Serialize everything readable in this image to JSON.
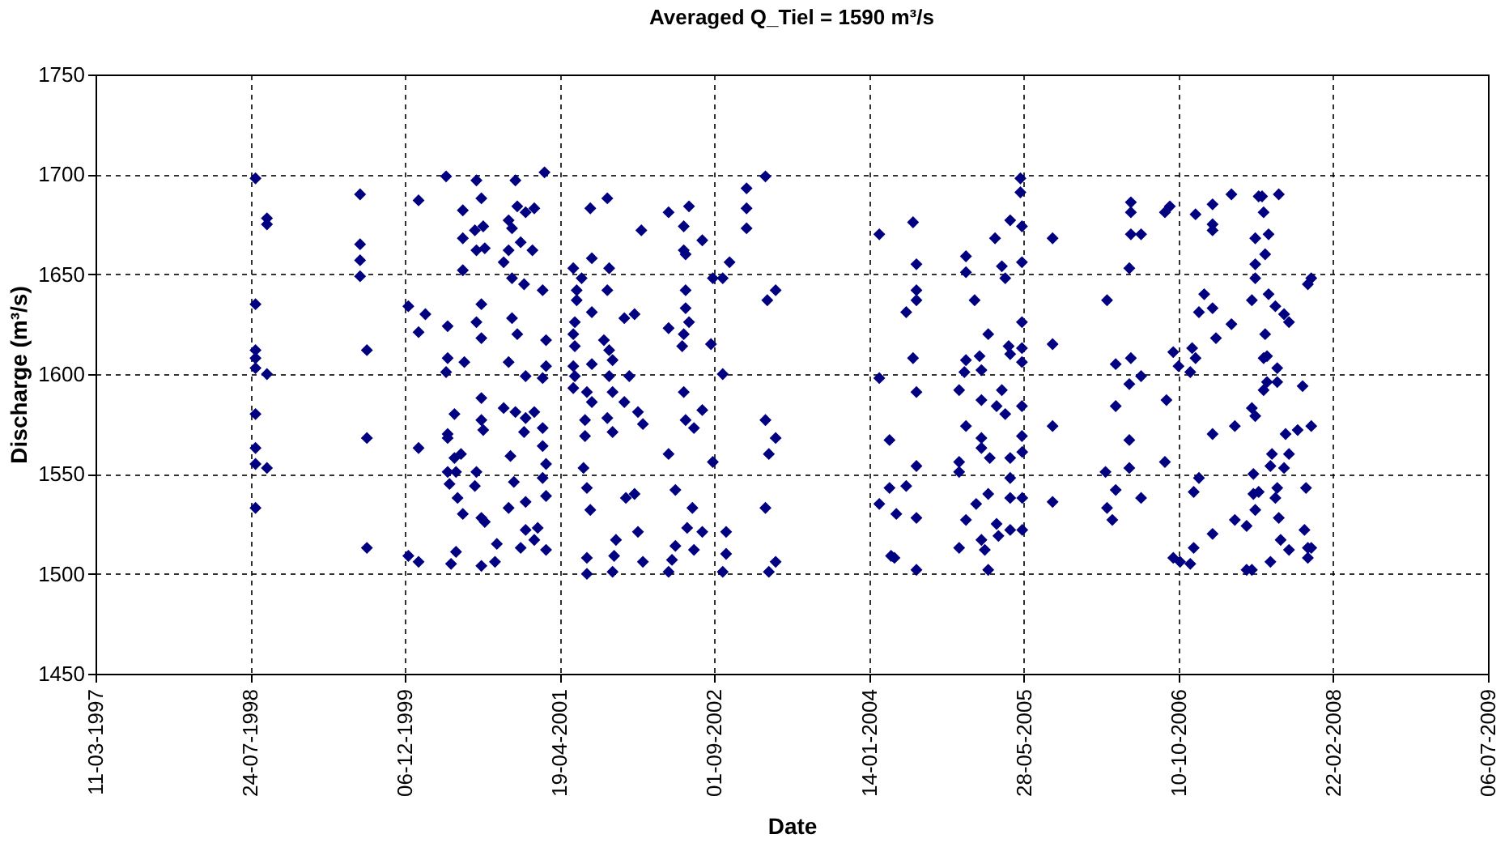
{
  "chart_data": {
    "type": "scatter",
    "title": "Averaged Q_Tiel = 1590 m³/s",
    "xlabel": "Date",
    "ylabel": "Discharge (m³/s)",
    "xlim": [
      "1997-03-11",
      "2009-07-06"
    ],
    "xticks": [
      {
        "value": "1997-03-11",
        "label": "11-03-1997"
      },
      {
        "value": "1998-07-24",
        "label": "24-07-1998"
      },
      {
        "value": "1999-12-06",
        "label": "06-12-1999"
      },
      {
        "value": "2001-04-19",
        "label": "19-04-2001"
      },
      {
        "value": "2002-09-01",
        "label": "01-09-2002"
      },
      {
        "value": "2004-01-14",
        "label": "14-01-2004"
      },
      {
        "value": "2005-05-28",
        "label": "28-05-2005"
      },
      {
        "value": "2006-10-10",
        "label": "10-10-2006"
      },
      {
        "value": "2008-02-22",
        "label": "22-02-2008"
      },
      {
        "value": "2009-07-06",
        "label": "06-07-2009"
      }
    ],
    "ylim": [
      1450,
      1750
    ],
    "yticks": [
      1450,
      1500,
      1550,
      1600,
      1650,
      1700,
      1750
    ],
    "grid": true,
    "marker": "diamond",
    "legend": false,
    "series": [
      {
        "color": "#000080",
        "x": [
          "1998-08-10",
          "1998-08-10",
          "1998-08-10",
          "1998-08-10",
          "1998-08-10",
          "1998-08-10",
          "1998-08-10",
          "1998-08-10",
          "1998-08-10",
          "1998-09-16",
          "1998-09-16",
          "1998-09-16",
          "1998-09-16",
          "1999-07-14",
          "1999-07-14",
          "1999-07-14",
          "1999-07-14",
          "1999-08-05",
          "1999-08-05",
          "1999-08-05",
          "1999-12-17",
          "1999-12-17",
          "2000-01-19",
          "2000-01-19",
          "2000-01-19",
          "2000-01-19",
          "2000-02-10",
          "2000-04-17",
          "2000-06-10",
          "2000-08-09",
          "2000-07-24",
          "2000-06-10",
          "2000-07-19",
          "2000-08-15",
          "2000-07-24",
          "2000-08-20",
          "2000-06-10",
          "2000-08-09",
          "2000-07-24",
          "2000-08-09",
          "2000-04-22",
          "2000-04-22",
          "2000-06-15",
          "2000-04-17",
          "2000-08-09",
          "2000-05-14",
          "2000-04-22",
          "2000-08-09",
          "2000-08-15",
          "2000-04-22",
          "2000-05-14",
          "2000-06-04",
          "2000-04-22",
          "2000-05-19",
          "2000-04-28",
          "2000-07-24",
          "2000-07-19",
          "2000-05-24",
          "2000-06-10",
          "2000-08-09",
          "2000-08-20",
          "2000-05-19",
          "2000-05-03",
          "2000-08-09",
          "2000-09-28",
          "2000-09-22",
          "2000-11-27",
          "2000-12-03",
          "2000-12-30",
          "2001-01-27",
          "2000-11-05",
          "2000-11-16",
          "2000-12-14",
          "2000-11-05",
          "2001-01-21",
          "2000-10-20",
          "2000-11-16",
          "2000-12-25",
          "2001-02-23",
          "2000-11-16",
          "2000-12-03",
          "2001-03-06",
          "2000-11-05",
          "2000-12-30",
          "2001-03-06",
          "2001-02-23",
          "2000-10-20",
          "2000-11-27",
          "2000-12-30",
          "2001-01-27",
          "2000-12-25",
          "2001-02-23",
          "2000-11-11",
          "2001-02-23",
          "2001-03-06",
          "2001-02-23",
          "2000-11-22",
          "2000-12-30",
          "2000-11-05",
          "2001-03-06",
          "2000-12-30",
          "2001-02-07",
          "2000-12-14",
          "2001-01-27",
          "2001-03-06",
          "2001-03-01",
          "2001-07-27",
          "2001-09-20",
          "2002-01-08",
          "2002-04-06",
          "2002-06-11",
          "2002-05-25",
          "2002-07-24",
          "2002-05-25",
          "2002-05-31",
          "2001-08-01",
          "2001-06-02",
          "2001-06-29",
          "2001-09-26",
          "2001-09-20",
          "2001-06-13",
          "2001-06-13",
          "2001-08-01",
          "2001-11-14",
          "2001-12-17",
          "2002-05-31",
          "2002-05-31",
          "2002-04-06",
          "2002-06-11",
          "2002-05-25",
          "2002-05-20",
          "2002-08-21",
          "2001-06-07",
          "2001-06-02",
          "2001-06-07",
          "2001-09-09",
          "2001-09-26",
          "2001-10-07",
          "2001-08-01",
          "2001-06-02",
          "2001-06-07",
          "2001-09-26",
          "2001-11-30",
          "2001-06-02",
          "2001-07-16",
          "2001-08-01",
          "2001-10-07",
          "2001-11-14",
          "2002-05-25",
          "2001-12-28",
          "2002-01-13",
          "2001-07-10",
          "2001-09-20",
          "2001-10-07",
          "2001-07-10",
          "2002-05-31",
          "2002-06-27",
          "2002-07-24",
          "2002-04-06",
          "2002-08-27",
          "2001-07-05",
          "2001-07-16",
          "2001-07-27",
          "2001-11-19",
          "2001-12-17",
          "2002-04-28",
          "2002-06-22",
          "2002-06-05",
          "2002-07-24",
          "2001-12-28",
          "2001-10-18",
          "2001-10-12",
          "2001-10-07",
          "2001-07-16",
          "2001-07-16",
          "2002-01-13",
          "2002-04-28",
          "2002-04-17",
          "2002-04-06",
          "2002-06-27",
          "2002-09-28",
          "2002-10-20",
          "2002-08-27",
          "2002-09-28",
          "2002-12-14",
          "2002-12-14",
          "2002-12-14",
          "2003-02-13",
          "2003-03-18",
          "2003-02-19",
          "2003-02-13",
          "2003-03-18",
          "2003-02-24",
          "2003-02-13",
          "2002-10-09",
          "2002-10-09",
          "2002-09-28",
          "2003-03-18",
          "2003-02-24",
          "2004-02-16",
          "2004-06-04",
          "2004-06-15",
          "2004-06-15",
          "2004-06-15",
          "2004-05-13",
          "2004-06-04",
          "2004-06-15",
          "2004-02-16",
          "2004-03-20",
          "2004-06-15",
          "2004-03-20",
          "2004-02-16",
          "2004-05-13",
          "2004-04-11",
          "2004-06-15",
          "2004-03-25",
          "2004-04-05",
          "2004-06-15",
          "2004-11-22",
          "2004-11-22",
          "2004-12-20",
          "2005-02-02",
          "2004-11-22",
          "2005-01-05",
          "2005-01-11",
          "2004-11-17",
          "2004-10-31",
          "2005-01-11",
          "2004-11-22",
          "2005-01-11",
          "2005-01-11",
          "2005-02-07",
          "2004-10-31",
          "2004-10-31",
          "2005-02-02",
          "2004-12-25",
          "2004-11-22",
          "2004-10-31",
          "2005-01-11",
          "2005-01-22",
          "2005-02-02",
          "2005-03-01",
          "2005-03-07",
          "2005-04-14",
          "2005-05-23",
          "2005-04-14",
          "2005-05-23",
          "2005-04-14",
          "2005-04-14",
          "2005-05-22",
          "2005-05-23",
          "2005-03-18",
          "2005-03-01",
          "2005-03-29",
          "2005-05-22",
          "2005-04-09",
          "2005-05-22",
          "2005-05-22",
          "2005-04-14",
          "2005-05-22",
          "2005-03-18",
          "2005-03-29",
          "2005-05-22",
          "2005-02-24",
          "2005-04-14",
          "2005-05-22",
          "2005-05-17",
          "2005-05-17",
          "2005-08-29",
          "2005-08-29",
          "2005-08-29",
          "2005-08-29",
          "2006-05-09",
          "2006-05-09",
          "2006-05-09",
          "2006-06-11",
          "2006-05-04",
          "2006-02-21",
          "2006-03-21",
          "2006-05-09",
          "2006-06-11",
          "2006-05-04",
          "2006-03-21",
          "2006-05-04",
          "2006-02-16",
          "2006-05-04",
          "2006-03-21",
          "2006-06-11",
          "2006-02-21",
          "2006-03-10",
          "2006-08-27",
          "2006-09-12",
          "2006-12-04",
          "2007-01-28",
          "2007-01-28",
          "2007-01-28",
          "2007-03-30",
          "2007-01-01",
          "2006-12-15",
          "2007-01-28",
          "2007-03-30",
          "2007-02-08",
          "2006-09-23",
          "2006-11-23",
          "2006-12-04",
          "2006-10-10",
          "2006-11-17",
          "2006-09-01",
          "2006-08-27",
          "2007-01-28",
          "2006-12-15",
          "2006-11-28",
          "2006-09-23",
          "2006-10-15",
          "2006-11-28",
          "2006-11-17",
          "2007-01-28",
          "2007-04-10",
          "2007-04-10",
          "2007-05-18",
          "2007-06-04",
          "2007-06-15",
          "2007-06-09",
          "2007-06-09",
          "2007-06-26",
          "2007-06-15",
          "2007-05-18",
          "2007-06-04",
          "2007-08-03",
          "2007-06-26",
          "2007-07-07",
          "2007-07-12",
          "2007-08-30",
          "2007-06-15",
          "2007-07-28",
          "2007-07-17",
          "2007-06-15",
          "2007-06-15",
          "2007-06-04",
          "2007-07-28",
          "2007-08-19",
          "2007-09-16",
          "2007-10-02",
          "2007-07-17",
          "2007-07-23",
          "2007-07-12",
          "2007-08-25",
          "2007-07-12",
          "2007-07-23",
          "2007-08-25",
          "2007-11-15",
          "2007-08-08",
          "2007-09-21",
          "2007-10-02",
          "2007-10-30",
          "2007-12-13",
          "2007-08-03",
          "2007-09-16",
          "2007-08-19",
          "2007-08-25",
          "2007-08-30",
          "2007-09-05",
          "2007-10-02",
          "2007-11-21",
          "2007-12-02",
          "2007-12-02",
          "2007-12-13",
          "2007-11-26",
          "2007-12-02",
          "2007-12-13"
        ],
        "values": [
          1698,
          1635,
          1612,
          1608,
          1603,
          1580,
          1563,
          1555,
          1533,
          1678,
          1675,
          1600,
          1553,
          1690,
          1665,
          1657,
          1649,
          1612,
          1568,
          1513,
          1634,
          1509,
          1687,
          1621,
          1563,
          1506,
          1630,
          1699,
          1682,
          1688,
          1697,
          1668,
          1672,
          1674,
          1662,
          1663,
          1652,
          1635,
          1626,
          1618,
          1624,
          1608,
          1606,
          1601,
          1588,
          1580,
          1570,
          1577,
          1572,
          1568,
          1558,
          1560,
          1551,
          1551,
          1545,
          1551,
          1544,
          1538,
          1530,
          1528,
          1526,
          1511,
          1505,
          1504,
          1515,
          1506,
          1697,
          1684,
          1681,
          1683,
          1677,
          1673,
          1666,
          1662,
          1662,
          1656,
          1648,
          1645,
          1642,
          1628,
          1620,
          1617,
          1606,
          1599,
          1604,
          1598,
          1583,
          1581,
          1578,
          1581,
          1571,
          1573,
          1559,
          1564,
          1555,
          1548,
          1546,
          1536,
          1533,
          1539,
          1522,
          1523,
          1513,
          1517,
          1512,
          1701,
          1683,
          1688,
          1672,
          1681,
          1684,
          1674,
          1667,
          1662,
          1660,
          1658,
          1653,
          1648,
          1653,
          1642,
          1642,
          1637,
          1631,
          1628,
          1630,
          1642,
          1633,
          1623,
          1626,
          1620,
          1614,
          1615,
          1626,
          1620,
          1614,
          1617,
          1612,
          1607,
          1605,
          1604,
          1599,
          1599,
          1599,
          1593,
          1591,
          1586,
          1591,
          1586,
          1591,
          1581,
          1575,
          1577,
          1578,
          1571,
          1569,
          1577,
          1573,
          1582,
          1560,
          1556,
          1553,
          1543,
          1532,
          1538,
          1540,
          1542,
          1533,
          1523,
          1521,
          1521,
          1517,
          1509,
          1501,
          1508,
          1500,
          1506,
          1514,
          1507,
          1501,
          1512,
          1648,
          1656,
          1648,
          1600,
          1693,
          1683,
          1673,
          1699,
          1642,
          1637,
          1577,
          1568,
          1560,
          1533,
          1521,
          1510,
          1501,
          1506,
          1501,
          1670,
          1676,
          1655,
          1642,
          1637,
          1631,
          1608,
          1591,
          1598,
          1567,
          1554,
          1543,
          1535,
          1544,
          1530,
          1528,
          1509,
          1508,
          1502,
          1659,
          1651,
          1637,
          1620,
          1607,
          1609,
          1602,
          1601,
          1592,
          1587,
          1574,
          1568,
          1563,
          1558,
          1556,
          1551,
          1540,
          1535,
          1527,
          1513,
          1517,
          1512,
          1502,
          1525,
          1519,
          1522,
          1522,
          1538,
          1538,
          1558,
          1548,
          1569,
          1561,
          1592,
          1584,
          1580,
          1584,
          1614,
          1613,
          1606,
          1610,
          1626,
          1654,
          1648,
          1656,
          1668,
          1677,
          1674,
          1698,
          1691,
          1668,
          1615,
          1574,
          1536,
          1686,
          1681,
          1670,
          1670,
          1653,
          1637,
          1605,
          1608,
          1599,
          1595,
          1584,
          1567,
          1551,
          1553,
          1542,
          1538,
          1533,
          1527,
          1681,
          1684,
          1680,
          1685,
          1675,
          1672,
          1690,
          1640,
          1631,
          1633,
          1625,
          1618,
          1611,
          1613,
          1608,
          1604,
          1601,
          1587,
          1556,
          1570,
          1548,
          1541,
          1508,
          1506,
          1513,
          1505,
          1520,
          1574,
          1527,
          1524,
          1583,
          1579,
          1550,
          1540,
          1541,
          1532,
          1502,
          1502,
          1506,
          1689,
          1689,
          1681,
          1690,
          1668,
          1670,
          1660,
          1655,
          1648,
          1637,
          1640,
          1634,
          1630,
          1626,
          1620,
          1609,
          1608,
          1603,
          1592,
          1596,
          1596,
          1594,
          1560,
          1570,
          1560,
          1572,
          1574,
          1554,
          1553,
          1538,
          1543,
          1528,
          1517,
          1512,
          1522,
          1513,
          1508,
          1513,
          1543,
          1645,
          1648
        ]
      }
    ]
  }
}
